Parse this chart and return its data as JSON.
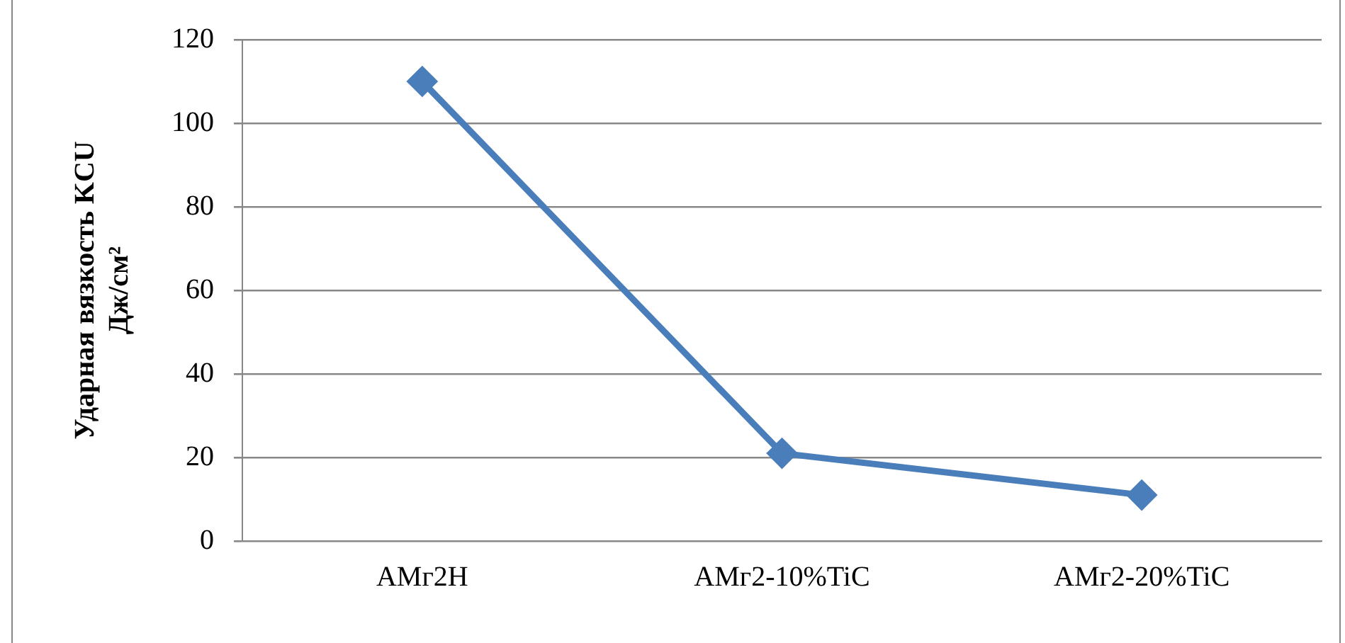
{
  "chart_data": {
    "type": "line",
    "ylabel": "Ударная вязкость KCU Дж/см²",
    "categories": [
      "АМг2Н",
      "АМг2-10%TiC",
      "АМг2-20%TiC"
    ],
    "series": [
      {
        "color": "#4a7ebb",
        "values": [
          110,
          21,
          11
        ]
      }
    ],
    "ylim": [
      0,
      120
    ],
    "yticks": [
      0,
      20,
      40,
      60,
      80,
      100,
      120
    ],
    "grid": "y",
    "legend": false,
    "marker": "diamond",
    "line_style": "solid"
  }
}
